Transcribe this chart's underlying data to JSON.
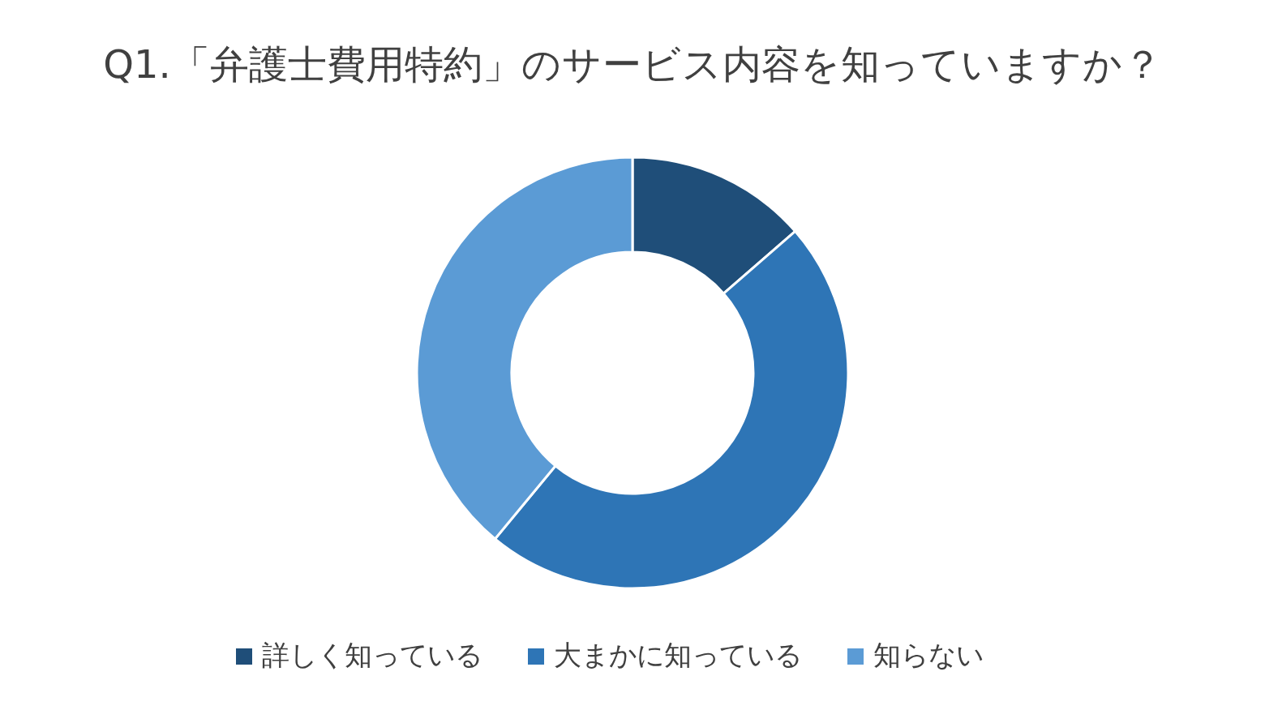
{
  "chart_data": {
    "type": "donut",
    "title": "Q1.「弁護士費用特約」のサービス内容を知っていますか？",
    "categories": [
      "詳しく知っている",
      "大まかに知っている",
      "知らない"
    ],
    "values": [
      13.6,
      47.4,
      39.0
    ],
    "colors": [
      "#1f4e79",
      "#2e75b6",
      "#5b9bd5"
    ],
    "legend": "bottom"
  }
}
